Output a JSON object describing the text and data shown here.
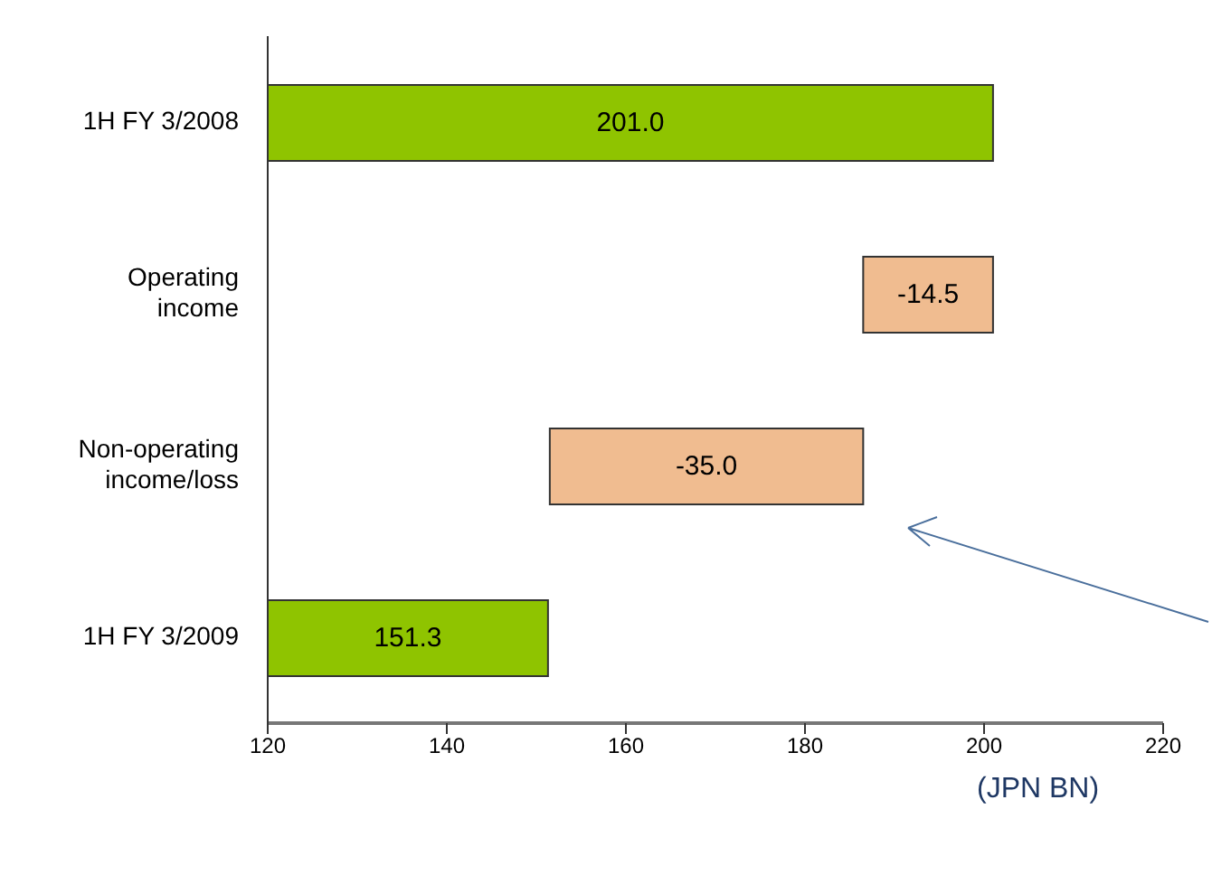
{
  "chart_data": {
    "type": "bar",
    "orientation": "horizontal",
    "categories": [
      "1H FY 3/2008",
      "Operating income",
      "Non-operating income/loss",
      "1H FY 3/2009"
    ],
    "values": [
      201.0,
      -14.5,
      -35.0,
      151.3
    ],
    "base": [
      null,
      201.0,
      186.5,
      null
    ],
    "colors": [
      "#8fc400",
      "#f0bc90",
      "#f0bc90",
      "#8fc400"
    ],
    "value_labels": [
      "201.0",
      "-14.5",
      "-35.0",
      "151.3"
    ],
    "xlim": [
      120,
      220
    ],
    "xticks": [
      120,
      140,
      160,
      180,
      200,
      220
    ],
    "xlabel": "(JPN BN)"
  }
}
